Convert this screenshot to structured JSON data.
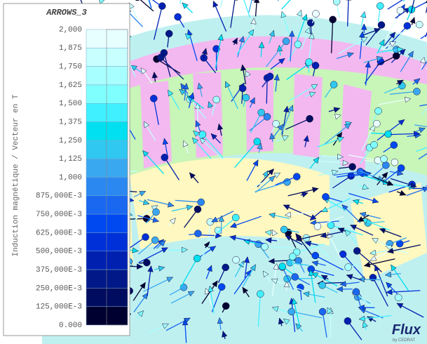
{
  "legend": {
    "title": "ARROWS_3",
    "axis_label": "Induction magnétique / Vecteur en T",
    "labels": [
      "2,000",
      "1,875",
      "1,750",
      "1,625",
      "1,500",
      "1,375",
      "1,250",
      "1,125",
      "1,000",
      "875,000E-3",
      "750,000E-3",
      "625,000E-3",
      "500,000E-3",
      "375,000E-3",
      "250,000E-3",
      "125,000E-3",
      "0.000"
    ],
    "colors": [
      "#e8ffff",
      "#c8ffff",
      "#a8ffff",
      "#80ffff",
      "#40f0ff",
      "#00e0f0",
      "#30c8f0",
      "#3aa8f0",
      "#2a88f0",
      "#1a68f0",
      "#0048f0",
      "#0030d8",
      "#0020b0",
      "#001888",
      "#000c60",
      "#000030"
    ]
  },
  "logo": {
    "name": "Flux",
    "sub": "by CEDRAT"
  }
}
